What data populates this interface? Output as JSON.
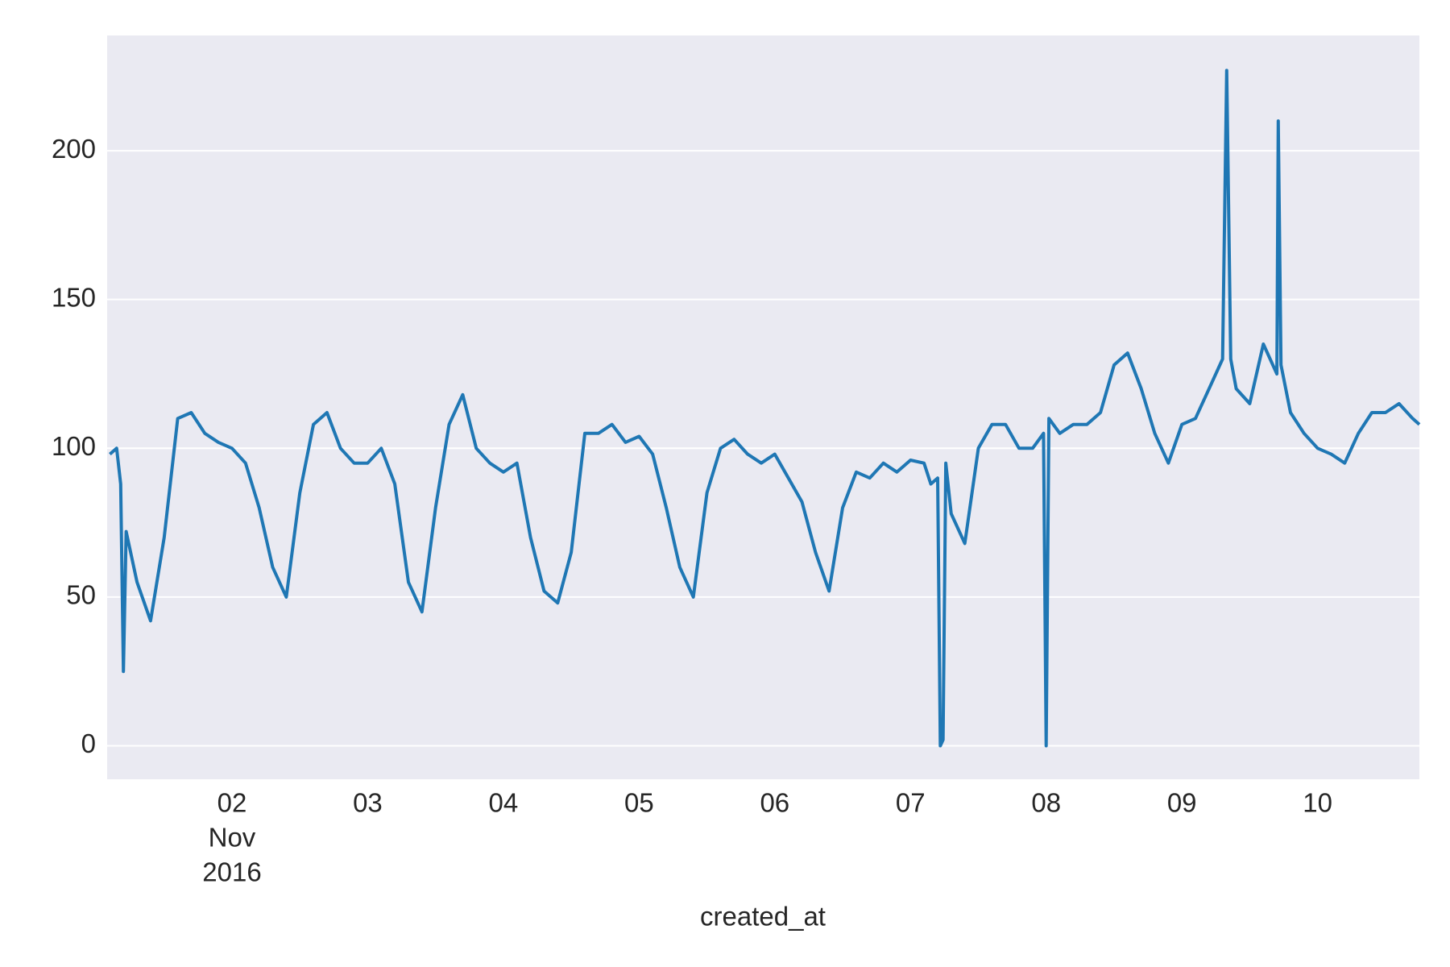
{
  "chart_data": {
    "type": "line",
    "xlabel": "created_at",
    "x": [
      1.1,
      1.15,
      1.18,
      1.2,
      1.22,
      1.3,
      1.4,
      1.5,
      1.6,
      1.7,
      1.8,
      1.9,
      2.0,
      2.1,
      2.2,
      2.3,
      2.4,
      2.5,
      2.6,
      2.7,
      2.8,
      2.9,
      3.0,
      3.1,
      3.2,
      3.3,
      3.4,
      3.5,
      3.6,
      3.7,
      3.8,
      3.9,
      4.0,
      4.1,
      4.2,
      4.3,
      4.4,
      4.5,
      4.6,
      4.7,
      4.8,
      4.9,
      5.0,
      5.1,
      5.2,
      5.3,
      5.4,
      5.5,
      5.6,
      5.7,
      5.8,
      5.9,
      6.0,
      6.1,
      6.2,
      6.3,
      6.4,
      6.5,
      6.6,
      6.7,
      6.8,
      6.9,
      7.0,
      7.1,
      7.15,
      7.2,
      7.22,
      7.24,
      7.26,
      7.3,
      7.4,
      7.5,
      7.6,
      7.7,
      7.8,
      7.9,
      7.98,
      8.0,
      8.02,
      8.1,
      8.2,
      8.3,
      8.4,
      8.5,
      8.6,
      8.7,
      8.8,
      8.9,
      9.0,
      9.1,
      9.2,
      9.3,
      9.33,
      9.36,
      9.4,
      9.5,
      9.6,
      9.7,
      9.71,
      9.73,
      9.8,
      9.9,
      10.0,
      10.1,
      10.2,
      10.3,
      10.4,
      10.5,
      10.6,
      10.7,
      10.75
    ],
    "series": [
      {
        "color": "#1f77b4",
        "values": [
          98,
          100,
          88,
          25,
          72,
          55,
          42,
          70,
          110,
          112,
          105,
          102,
          100,
          95,
          80,
          60,
          50,
          85,
          108,
          112,
          100,
          95,
          95,
          100,
          88,
          55,
          45,
          80,
          108,
          118,
          100,
          95,
          92,
          95,
          70,
          52,
          48,
          65,
          105,
          105,
          108,
          102,
          104,
          98,
          80,
          60,
          50,
          85,
          100,
          103,
          98,
          95,
          98,
          90,
          82,
          65,
          52,
          80,
          92,
          90,
          95,
          92,
          96,
          95,
          88,
          90,
          0,
          2,
          95,
          78,
          68,
          100,
          108,
          108,
          100,
          100,
          105,
          0,
          110,
          105,
          108,
          108,
          112,
          128,
          132,
          120,
          105,
          95,
          108,
          110,
          120,
          130,
          227,
          130,
          120,
          115,
          135,
          125,
          210,
          128,
          112,
          105,
          100,
          98,
          95,
          105,
          112,
          112,
          115,
          110,
          108
        ]
      }
    ],
    "xlim": [
      1.08,
      10.75
    ],
    "xticks": [
      {
        "value": 2,
        "label": "02"
      },
      {
        "value": 3,
        "label": "03"
      },
      {
        "value": 4,
        "label": "04"
      },
      {
        "value": 5,
        "label": "05"
      },
      {
        "value": 6,
        "label": "06"
      },
      {
        "value": 7,
        "label": "07"
      },
      {
        "value": 8,
        "label": "08"
      },
      {
        "value": 9,
        "label": "09"
      },
      {
        "value": 10,
        "label": "10"
      }
    ],
    "x_period_labels": [
      "Nov",
      "2016"
    ],
    "ylim": [
      -11.25,
      238.75
    ],
    "yticks": [
      0,
      50,
      100,
      150,
      200
    ],
    "grid": "y"
  }
}
